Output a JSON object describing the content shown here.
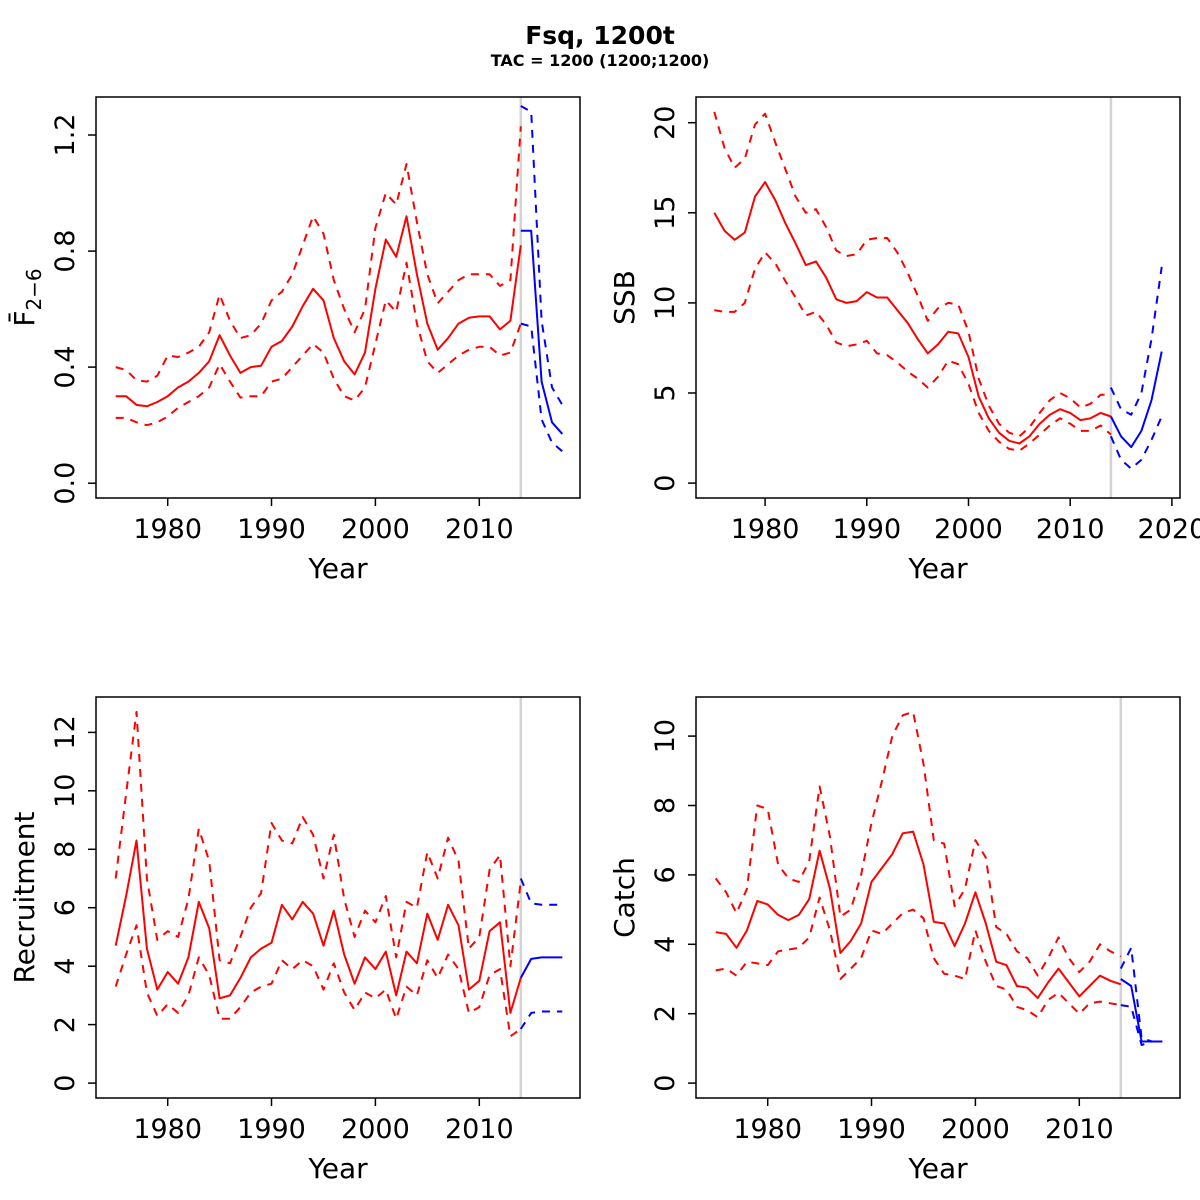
{
  "figure": {
    "title": "Fsq, 1200t",
    "subtitle": "TAC = 1200 (1200;1200)"
  },
  "colors": {
    "history": "#FF0000",
    "forecast": "#0000FF",
    "forecast_divider": "#D3D3D3",
    "axis": "#000000",
    "background": "#FFFFFF"
  },
  "chart_data": [
    {
      "type": "line",
      "panel_id": "fbar",
      "ylabel": {
        "base": "F̄",
        "sub": "2−6"
      },
      "xlabel": "Year",
      "xlim": [
        1973.1,
        2019.7
      ],
      "ylim": [
        -0.051,
        1.331
      ],
      "xticks": [
        1980,
        1990,
        2000,
        2010
      ],
      "yticks": [
        {
          "v": 0.0,
          "label": "0.0"
        },
        {
          "v": 0.4,
          "label": "0.4"
        },
        {
          "v": 0.8,
          "label": "0.8"
        },
        {
          "v": 1.2,
          "label": "1.2"
        }
      ],
      "grid": false,
      "forecast_divider_year": 2014,
      "series": [
        {
          "name": "F median (history)",
          "color": "#FF0000",
          "dashed": false,
          "start_year": 1975,
          "values": [
            0.3,
            0.3,
            0.27,
            0.265,
            0.28,
            0.3,
            0.33,
            0.35,
            0.38,
            0.42,
            0.51,
            0.44,
            0.38,
            0.4,
            0.405,
            0.47,
            0.49,
            0.54,
            0.61,
            0.67,
            0.63,
            0.5,
            0.42,
            0.375,
            0.45,
            0.67,
            0.84,
            0.78,
            0.92,
            0.72,
            0.55,
            0.46,
            0.5,
            0.55,
            0.57,
            0.575,
            0.575,
            0.53,
            0.56,
            0.82
          ]
        },
        {
          "name": "F upper CI (history)",
          "color": "#FF0000",
          "dashed": true,
          "start_year": 1975,
          "values": [
            0.4,
            0.39,
            0.355,
            0.35,
            0.37,
            0.44,
            0.435,
            0.45,
            0.47,
            0.52,
            0.65,
            0.56,
            0.5,
            0.51,
            0.55,
            0.63,
            0.66,
            0.72,
            0.82,
            0.92,
            0.86,
            0.7,
            0.6,
            0.52,
            0.6,
            0.88,
            1.0,
            0.96,
            1.1,
            0.9,
            0.72,
            0.62,
            0.66,
            0.7,
            0.72,
            0.72,
            0.72,
            0.68,
            0.7,
            1.23
          ]
        },
        {
          "name": "F lower CI (history)",
          "color": "#FF0000",
          "dashed": true,
          "start_year": 1975,
          "values": [
            0.225,
            0.225,
            0.21,
            0.2,
            0.21,
            0.23,
            0.26,
            0.28,
            0.3,
            0.33,
            0.41,
            0.35,
            0.295,
            0.3,
            0.3,
            0.35,
            0.36,
            0.4,
            0.44,
            0.48,
            0.45,
            0.36,
            0.3,
            0.285,
            0.33,
            0.48,
            0.63,
            0.59,
            0.76,
            0.55,
            0.42,
            0.38,
            0.41,
            0.44,
            0.46,
            0.47,
            0.47,
            0.44,
            0.45,
            0.55
          ]
        },
        {
          "name": "F median (forecast)",
          "color": "#0000FF",
          "dashed": false,
          "start_year": 2014,
          "values": [
            0.87,
            0.87,
            0.35,
            0.21,
            0.17
          ]
        },
        {
          "name": "F upper CI (forecast)",
          "color": "#0000FF",
          "dashed": true,
          "start_year": 2014,
          "values": [
            1.3,
            1.28,
            0.56,
            0.33,
            0.27
          ]
        },
        {
          "name": "F lower CI (forecast)",
          "color": "#0000FF",
          "dashed": true,
          "start_year": 2014,
          "values": [
            0.55,
            0.54,
            0.22,
            0.14,
            0.11
          ]
        }
      ]
    },
    {
      "type": "line",
      "panel_id": "ssb",
      "ylabel": "SSB",
      "xlabel": "Year",
      "xlim": [
        1973.2,
        2020.8
      ],
      "ylim": [
        -0.824,
        21.424
      ],
      "xticks": [
        1980,
        1990,
        2000,
        2010,
        2020
      ],
      "yticks": [
        {
          "v": 0,
          "label": "0"
        },
        {
          "v": 5,
          "label": "5"
        },
        {
          "v": 10,
          "label": "10"
        },
        {
          "v": 15,
          "label": "15"
        },
        {
          "v": 20,
          "label": "20"
        }
      ],
      "grid": false,
      "forecast_divider_year": 2014,
      "series": [
        {
          "name": "SSB median (history)",
          "color": "#FF0000",
          "dashed": false,
          "start_year": 1975,
          "values": [
            15.0,
            14.0,
            13.5,
            13.9,
            15.9,
            16.7,
            15.7,
            14.4,
            13.3,
            12.1,
            12.3,
            11.4,
            10.2,
            10.0,
            10.1,
            10.6,
            10.3,
            10.3,
            9.6,
            8.9,
            8.0,
            7.2,
            7.7,
            8.4,
            8.3,
            7.0,
            4.8,
            3.6,
            2.8,
            2.35,
            2.2,
            2.6,
            3.3,
            3.8,
            4.1,
            3.9,
            3.5,
            3.6,
            3.9,
            3.7
          ]
        },
        {
          "name": "SSB upper CI (history)",
          "color": "#FF0000",
          "dashed": true,
          "start_year": 1975,
          "values": [
            20.6,
            18.6,
            17.5,
            18.0,
            19.9,
            20.5,
            18.9,
            17.4,
            15.9,
            15.0,
            15.2,
            14.2,
            12.9,
            12.6,
            12.7,
            13.5,
            13.6,
            13.6,
            12.8,
            11.7,
            10.4,
            9.0,
            9.7,
            10.0,
            9.9,
            8.4,
            5.8,
            4.3,
            3.3,
            2.8,
            2.6,
            3.1,
            3.9,
            4.6,
            5.0,
            4.7,
            4.2,
            4.4,
            4.9,
            4.9
          ]
        },
        {
          "name": "SSB lower CI (history)",
          "color": "#FF0000",
          "dashed": true,
          "start_year": 1975,
          "values": [
            9.6,
            9.5,
            9.5,
            10.0,
            11.9,
            12.8,
            12.2,
            11.2,
            10.3,
            9.3,
            9.5,
            8.8,
            7.8,
            7.6,
            7.7,
            7.9,
            7.2,
            7.1,
            6.7,
            6.2,
            5.8,
            5.3,
            5.9,
            6.8,
            6.6,
            5.5,
            3.9,
            2.9,
            2.3,
            1.9,
            1.8,
            2.2,
            2.7,
            3.2,
            3.6,
            3.3,
            2.9,
            2.9,
            3.2,
            2.7
          ]
        },
        {
          "name": "SSB median (forecast)",
          "color": "#0000FF",
          "dashed": false,
          "start_year": 2014,
          "values": [
            3.7,
            2.6,
            2.0,
            2.9,
            4.6,
            7.3
          ]
        },
        {
          "name": "SSB upper CI (forecast)",
          "color": "#0000FF",
          "dashed": true,
          "start_year": 2014,
          "values": [
            5.3,
            4.1,
            3.8,
            5.0,
            8.0,
            12.0
          ]
        },
        {
          "name": "SSB lower CI (forecast)",
          "color": "#0000FF",
          "dashed": true,
          "start_year": 2014,
          "values": [
            2.6,
            1.3,
            0.8,
            1.3,
            2.4,
            3.7
          ]
        }
      ]
    },
    {
      "type": "line",
      "panel_id": "recruitment",
      "ylabel": "Recruitment",
      "xlabel": "Year",
      "xlim": [
        1973.1,
        2019.7
      ],
      "ylim": [
        -0.51,
        13.21
      ],
      "xticks": [
        1980,
        1990,
        2000,
        2010
      ],
      "yticks": [
        {
          "v": 0,
          "label": "0"
        },
        {
          "v": 2,
          "label": "2"
        },
        {
          "v": 4,
          "label": "4"
        },
        {
          "v": 6,
          "label": "6"
        },
        {
          "v": 8,
          "label": "8"
        },
        {
          "v": 10,
          "label": "10"
        },
        {
          "v": 12,
          "label": "12"
        }
      ],
      "grid": false,
      "forecast_divider_year": 2014,
      "series": [
        {
          "name": "Recruitment median (history)",
          "color": "#FF0000",
          "dashed": false,
          "start_year": 1975,
          "values": [
            4.7,
            6.4,
            8.3,
            4.6,
            3.2,
            3.8,
            3.4,
            4.3,
            6.2,
            5.3,
            2.9,
            3.0,
            3.6,
            4.3,
            4.6,
            4.8,
            6.1,
            5.6,
            6.2,
            5.8,
            4.7,
            5.9,
            4.4,
            3.4,
            4.3,
            3.9,
            4.5,
            3.0,
            4.5,
            4.1,
            5.8,
            4.9,
            6.1,
            5.4,
            3.2,
            3.5,
            5.2,
            5.5,
            2.4,
            3.6
          ]
        },
        {
          "name": "Recruitment upper CI (history)",
          "color": "#FF0000",
          "dashed": true,
          "start_year": 1975,
          "values": [
            7.0,
            9.9,
            12.7,
            7.0,
            4.9,
            5.2,
            5.0,
            6.3,
            8.7,
            7.6,
            4.2,
            4.1,
            5.0,
            6.0,
            6.5,
            8.9,
            8.3,
            8.2,
            9.1,
            8.5,
            7.0,
            8.5,
            6.3,
            5.0,
            5.9,
            5.5,
            6.4,
            4.3,
            6.2,
            6.0,
            7.9,
            7.0,
            8.4,
            7.6,
            4.6,
            5.0,
            7.3,
            7.8,
            4.0,
            6.9
          ]
        },
        {
          "name": "Recruitment lower CI (history)",
          "color": "#FF0000",
          "dashed": true,
          "start_year": 1975,
          "values": [
            3.3,
            4.4,
            5.4,
            3.1,
            2.3,
            2.7,
            2.4,
            3.0,
            4.3,
            3.7,
            2.2,
            2.2,
            2.6,
            3.1,
            3.3,
            3.4,
            4.2,
            3.9,
            4.2,
            4.0,
            3.2,
            4.1,
            3.1,
            2.5,
            3.1,
            2.9,
            3.2,
            2.2,
            3.3,
            3.0,
            4.2,
            3.6,
            4.4,
            3.9,
            2.4,
            2.6,
            3.7,
            3.9,
            1.6,
            1.85
          ]
        },
        {
          "name": "Recruitment median (forecast)",
          "color": "#0000FF",
          "dashed": false,
          "start_year": 2014,
          "values": [
            3.6,
            4.25,
            4.3,
            4.3,
            4.3
          ]
        },
        {
          "name": "Recruitment upper CI (forecast)",
          "color": "#0000FF",
          "dashed": true,
          "start_year": 2014,
          "values": [
            7.0,
            6.15,
            6.1,
            6.1,
            6.1
          ]
        },
        {
          "name": "Recruitment lower CI (forecast)",
          "color": "#0000FF",
          "dashed": true,
          "start_year": 2014,
          "values": [
            1.85,
            2.4,
            2.45,
            2.45,
            2.45
          ]
        }
      ]
    },
    {
      "type": "line",
      "panel_id": "catch",
      "ylabel": "Catch",
      "xlabel": "Year",
      "xlim": [
        1973.1,
        2019.7
      ],
      "ylim": [
        -0.428,
        11.128
      ],
      "xticks": [
        1980,
        1990,
        2000,
        2010
      ],
      "yticks": [
        {
          "v": 0,
          "label": "0"
        },
        {
          "v": 2,
          "label": "2"
        },
        {
          "v": 4,
          "label": "4"
        },
        {
          "v": 6,
          "label": "6"
        },
        {
          "v": 8,
          "label": "8"
        },
        {
          "v": 10,
          "label": "10"
        }
      ],
      "grid": false,
      "forecast_divider_year": 2014,
      "series": [
        {
          "name": "Catch median (history)",
          "color": "#FF0000",
          "dashed": false,
          "start_year": 1975,
          "values": [
            4.35,
            4.3,
            3.9,
            4.4,
            5.25,
            5.15,
            4.85,
            4.7,
            4.85,
            5.3,
            6.7,
            5.6,
            3.75,
            4.1,
            4.6,
            5.8,
            6.2,
            6.6,
            7.2,
            7.25,
            6.3,
            4.65,
            4.6,
            3.95,
            4.6,
            5.5,
            4.6,
            3.5,
            3.4,
            2.8,
            2.75,
            2.45,
            2.9,
            3.3,
            2.9,
            2.5,
            2.8,
            3.1,
            2.95,
            2.85
          ]
        },
        {
          "name": "Catch upper CI (history)",
          "color": "#FF0000",
          "dashed": true,
          "start_year": 1975,
          "values": [
            5.9,
            5.5,
            4.9,
            5.6,
            8.0,
            7.9,
            6.3,
            5.9,
            5.8,
            6.4,
            8.55,
            7.1,
            4.8,
            5.0,
            6.0,
            7.5,
            8.7,
            10.0,
            10.6,
            10.7,
            9.2,
            7.0,
            6.9,
            5.1,
            5.6,
            7.0,
            6.5,
            4.5,
            4.3,
            3.8,
            3.6,
            3.1,
            3.6,
            4.2,
            3.6,
            3.2,
            3.5,
            4.0,
            3.8,
            3.65
          ]
        },
        {
          "name": "Catch lower CI (history)",
          "color": "#FF0000",
          "dashed": true,
          "start_year": 1975,
          "values": [
            3.25,
            3.3,
            3.1,
            3.5,
            3.45,
            3.4,
            3.8,
            3.85,
            3.9,
            4.2,
            5.35,
            4.4,
            3.0,
            3.3,
            3.6,
            4.4,
            4.3,
            4.6,
            4.9,
            5.0,
            4.75,
            3.6,
            3.15,
            3.1,
            3.0,
            4.4,
            3.5,
            2.8,
            2.7,
            2.2,
            2.1,
            1.9,
            2.4,
            2.6,
            2.3,
            2.0,
            2.3,
            2.35,
            2.3,
            2.25
          ]
        },
        {
          "name": "Catch median (forecast)",
          "color": "#0000FF",
          "dashed": false,
          "start_year": 2014,
          "values": [
            3.0,
            2.8,
            1.2,
            1.2,
            1.2
          ]
        },
        {
          "name": "Catch upper CI (forecast)",
          "color": "#0000FF",
          "dashed": true,
          "start_year": 2014,
          "values": [
            3.3,
            3.9,
            1.3,
            1.2,
            1.2
          ]
        },
        {
          "name": "Catch lower CI (forecast)",
          "color": "#0000FF",
          "dashed": true,
          "start_year": 2014,
          "values": [
            2.25,
            2.2,
            1.1,
            1.2,
            1.2
          ]
        }
      ]
    }
  ]
}
